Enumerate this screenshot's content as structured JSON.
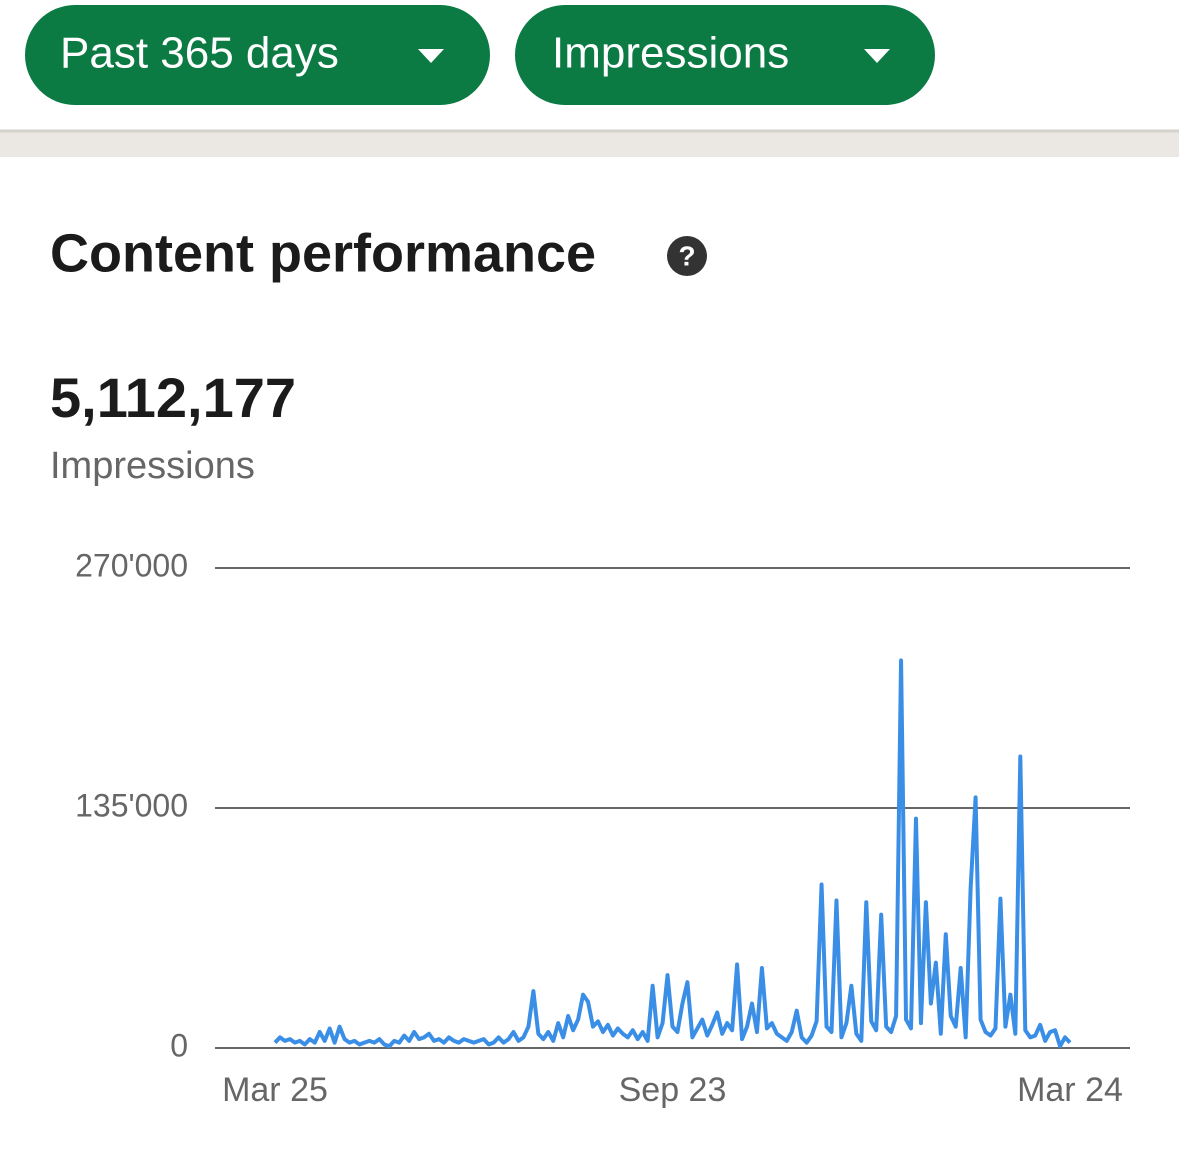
{
  "filters": [
    {
      "label": "Past 365 days"
    },
    {
      "label": "Impressions"
    }
  ],
  "section": {
    "title": "Content performance",
    "total": "5,112,177",
    "metric": "Impressions"
  },
  "chart_data": {
    "type": "line",
    "color": "#3a8ee6",
    "grid": true,
    "categories": [
      "Mar 25",
      null,
      null,
      null,
      null,
      null,
      null,
      null,
      null,
      null,
      null,
      null,
      null,
      null,
      null,
      null,
      null,
      null,
      null,
      null,
      null,
      null,
      null,
      null,
      null,
      null,
      null,
      null,
      null,
      null,
      null,
      null,
      null,
      null,
      null,
      null,
      null,
      null,
      null,
      null,
      null,
      null,
      null,
      null,
      null,
      null,
      null,
      null,
      null,
      null,
      null,
      null,
      null,
      null,
      null,
      null,
      null,
      null,
      null,
      null,
      null,
      null,
      null,
      null,
      null,
      null,
      null,
      null,
      null,
      null,
      null,
      null,
      null,
      null,
      null,
      null,
      null,
      null,
      null,
      null,
      "Sep 23",
      null,
      null,
      null,
      null,
      null,
      null,
      null,
      null,
      null,
      null,
      null,
      null,
      null,
      null,
      null,
      null,
      null,
      null,
      null,
      null,
      null,
      null,
      null,
      null,
      null,
      null,
      null,
      null,
      null,
      null,
      null,
      null,
      null,
      null,
      null,
      null,
      null,
      null,
      null,
      null,
      null,
      null,
      null,
      null,
      null,
      null,
      null,
      null,
      null,
      null,
      null,
      null,
      null,
      null,
      null,
      null,
      null,
      null,
      null,
      null,
      null,
      null,
      null,
      null,
      null,
      null,
      null,
      null,
      null,
      null,
      null,
      null,
      null,
      null,
      null,
      null,
      null,
      null,
      null,
      "Mar 24"
    ],
    "values": [
      3000,
      6000,
      4000,
      5000,
      3000,
      4000,
      2000,
      5000,
      3000,
      9000,
      4000,
      11000,
      3000,
      12000,
      5000,
      3000,
      4000,
      2000,
      3000,
      4000,
      3000,
      5000,
      2000,
      1000,
      4000,
      3000,
      7000,
      4000,
      9000,
      5000,
      6000,
      8000,
      4000,
      5000,
      3000,
      6000,
      4000,
      3000,
      5000,
      4000,
      3000,
      4000,
      5000,
      2000,
      3000,
      6000,
      3000,
      5000,
      9000,
      4000,
      6000,
      12000,
      32000,
      8000,
      5000,
      9000,
      4000,
      14000,
      6000,
      18000,
      10000,
      16000,
      30000,
      26000,
      12000,
      15000,
      9000,
      13000,
      7000,
      11000,
      8000,
      6000,
      10000,
      5000,
      9000,
      4000,
      35000,
      6000,
      14000,
      41000,
      12000,
      9000,
      25000,
      37000,
      6000,
      11000,
      16000,
      7000,
      13000,
      20000,
      8000,
      14000,
      10000,
      47000,
      5000,
      12000,
      25000,
      9000,
      45000,
      11000,
      14000,
      8000,
      6000,
      4000,
      9000,
      21000,
      6000,
      3000,
      7000,
      15000,
      92000,
      12000,
      9000,
      83000,
      6000,
      14000,
      35000,
      8000,
      4000,
      82000,
      15000,
      10000,
      75000,
      12000,
      9000,
      18000,
      218000,
      16000,
      11000,
      129000,
      14000,
      82000,
      25000,
      48000,
      8000,
      64000,
      18000,
      12000,
      45000,
      6000,
      90000,
      141000,
      16000,
      9000,
      7000,
      11000,
      84000,
      12000,
      30000,
      8000,
      164000,
      10000,
      6000,
      7000,
      13000,
      4000,
      9000,
      10000,
      1000,
      6000,
      3000
    ],
    "ylim": [
      0,
      270000
    ],
    "yticks": [
      {
        "value": 0,
        "label": "0"
      },
      {
        "value": 135000,
        "label": "135'000"
      },
      {
        "value": 270000,
        "label": "270'000"
      }
    ]
  }
}
